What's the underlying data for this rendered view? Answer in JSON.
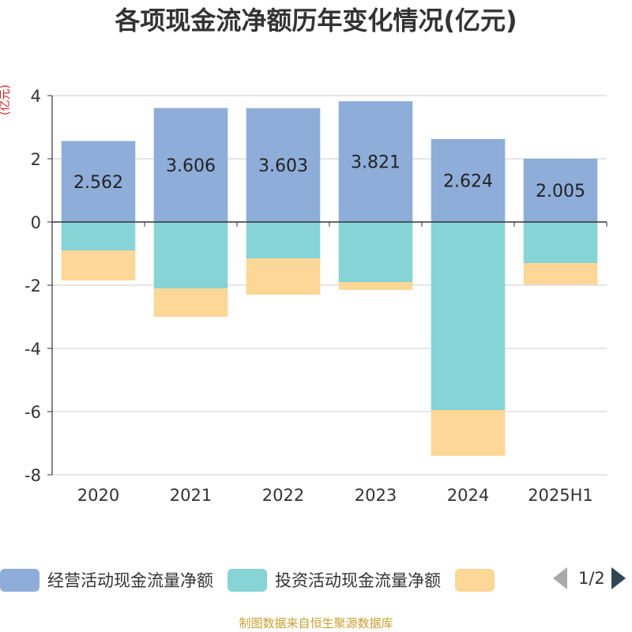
{
  "chart_data": {
    "type": "bar",
    "stacked": true,
    "title": "各项现金流净额历年变化情况(亿元)",
    "ylabel": "(亿元)",
    "categories": [
      "2020",
      "2021",
      "2022",
      "2023",
      "2024",
      "2025H1"
    ],
    "ylim": [
      -8,
      4
    ],
    "yticks": [
      4,
      2,
      0,
      -2,
      -4,
      -6,
      -8
    ],
    "grid": true,
    "series": [
      {
        "name": "经营活动现金流量净额",
        "color": "#8eadd9",
        "values": [
          2.562,
          3.606,
          3.603,
          3.821,
          2.624,
          2.005
        ]
      },
      {
        "name": "投资活动现金流量净额",
        "color": "#86d4d6",
        "values": [
          -0.9,
          -2.1,
          -1.15,
          -1.9,
          -5.95,
          -1.3
        ]
      },
      {
        "name": "",
        "color": "#fdd797",
        "values": [
          -0.95,
          -0.9,
          -1.15,
          -0.25,
          -1.45,
          -0.68
        ]
      }
    ],
    "data_labels": [
      "2.562",
      "3.606",
      "3.603",
      "3.821",
      "2.624",
      "2.005"
    ]
  },
  "legend": {
    "items": [
      {
        "label": "经营活动现金流量净额",
        "color": "#8eadd9"
      },
      {
        "label": "投资活动现金流量净额",
        "color": "#86d4d6"
      },
      {
        "label": "",
        "color": "#fdd797"
      }
    ],
    "page": "1/2"
  },
  "source": "制图数据来自恒生聚源数据库"
}
